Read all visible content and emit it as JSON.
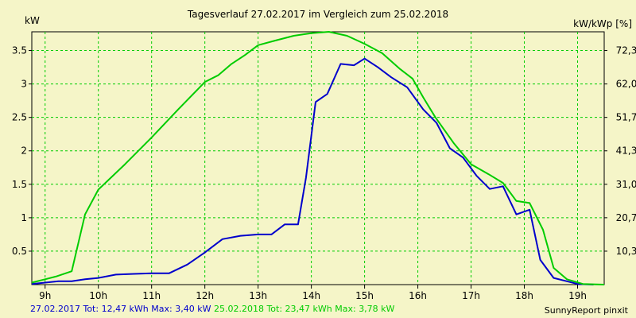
{
  "chart_data": {
    "type": "line",
    "title": "Tagesverlauf 27.02.2017 im Vergleich zum 25.02.2018",
    "ylabel_left": "kW",
    "ylabel_right": "kW/kWp [%]",
    "x_ticks": [
      "9h",
      "10h",
      "11h",
      "12h",
      "13h",
      "14h",
      "15h",
      "16h",
      "17h",
      "18h",
      "19h"
    ],
    "y_ticks_left": [
      "0.5",
      "1",
      "1.5",
      "2",
      "2.5",
      "3",
      "3.5"
    ],
    "y_ticks_right": [
      "10,3",
      "20,7",
      "31,0",
      "41,3",
      "51,7",
      "62,0",
      "72,3"
    ],
    "xlim": [
      8.75,
      19.5
    ],
    "ylim": [
      0,
      3.78
    ],
    "grid": true,
    "series": [
      {
        "name": "27.02.2017",
        "color": "#0000cc",
        "points": [
          [
            8.75,
            0.01
          ],
          [
            9.0,
            0.03
          ],
          [
            9.25,
            0.05
          ],
          [
            9.5,
            0.05
          ],
          [
            9.75,
            0.08
          ],
          [
            10.0,
            0.1
          ],
          [
            10.33,
            0.15
          ],
          [
            10.67,
            0.16
          ],
          [
            11.0,
            0.17
          ],
          [
            11.33,
            0.17
          ],
          [
            11.67,
            0.3
          ],
          [
            12.0,
            0.48
          ],
          [
            12.33,
            0.68
          ],
          [
            12.67,
            0.73
          ],
          [
            13.0,
            0.75
          ],
          [
            13.25,
            0.75
          ],
          [
            13.5,
            0.9
          ],
          [
            13.75,
            0.9
          ],
          [
            13.9,
            1.6
          ],
          [
            14.08,
            2.73
          ],
          [
            14.3,
            2.85
          ],
          [
            14.55,
            3.3
          ],
          [
            14.8,
            3.28
          ],
          [
            15.0,
            3.38
          ],
          [
            15.25,
            3.25
          ],
          [
            15.5,
            3.1
          ],
          [
            15.8,
            2.95
          ],
          [
            16.1,
            2.62
          ],
          [
            16.35,
            2.42
          ],
          [
            16.6,
            2.04
          ],
          [
            16.85,
            1.9
          ],
          [
            17.1,
            1.63
          ],
          [
            17.35,
            1.43
          ],
          [
            17.6,
            1.47
          ],
          [
            17.85,
            1.05
          ],
          [
            18.1,
            1.12
          ],
          [
            18.3,
            0.37
          ],
          [
            18.55,
            0.1
          ],
          [
            18.8,
            0.05
          ],
          [
            19.0,
            0.01
          ],
          [
            19.3,
            0.0
          ]
        ]
      },
      {
        "name": "25.02.2018",
        "color": "#00cc00",
        "points": [
          [
            8.75,
            0.03
          ],
          [
            9.0,
            0.08
          ],
          [
            9.2,
            0.12
          ],
          [
            9.5,
            0.2
          ],
          [
            9.75,
            1.05
          ],
          [
            10.0,
            1.42
          ],
          [
            10.5,
            1.8
          ],
          [
            11.0,
            2.2
          ],
          [
            11.5,
            2.62
          ],
          [
            12.0,
            3.03
          ],
          [
            12.25,
            3.13
          ],
          [
            12.5,
            3.3
          ],
          [
            12.75,
            3.43
          ],
          [
            13.0,
            3.58
          ],
          [
            13.33,
            3.65
          ],
          [
            13.67,
            3.72
          ],
          [
            14.0,
            3.76
          ],
          [
            14.33,
            3.78
          ],
          [
            14.67,
            3.72
          ],
          [
            15.0,
            3.6
          ],
          [
            15.33,
            3.46
          ],
          [
            15.67,
            3.22
          ],
          [
            15.9,
            3.08
          ],
          [
            16.1,
            2.8
          ],
          [
            16.33,
            2.5
          ],
          [
            16.67,
            2.12
          ],
          [
            17.0,
            1.8
          ],
          [
            17.33,
            1.65
          ],
          [
            17.6,
            1.52
          ],
          [
            17.85,
            1.25
          ],
          [
            18.1,
            1.22
          ],
          [
            18.35,
            0.82
          ],
          [
            18.55,
            0.25
          ],
          [
            18.8,
            0.08
          ],
          [
            19.1,
            0.01
          ],
          [
            19.5,
            0.0
          ]
        ]
      }
    ]
  },
  "footer": {
    "s1_label": "27.02.2017 Tot: 12,47 kWh Max: 3,40 kW",
    "s2_label": "25.02.2018 Tot: 23,47 kWh Max: 3,78 kW",
    "credit": "SunnyReport pinxit"
  },
  "colors": {
    "background": "#f5f5c8",
    "grid": "#00cc00",
    "series1": "#0000cc",
    "series2": "#00cc00"
  }
}
